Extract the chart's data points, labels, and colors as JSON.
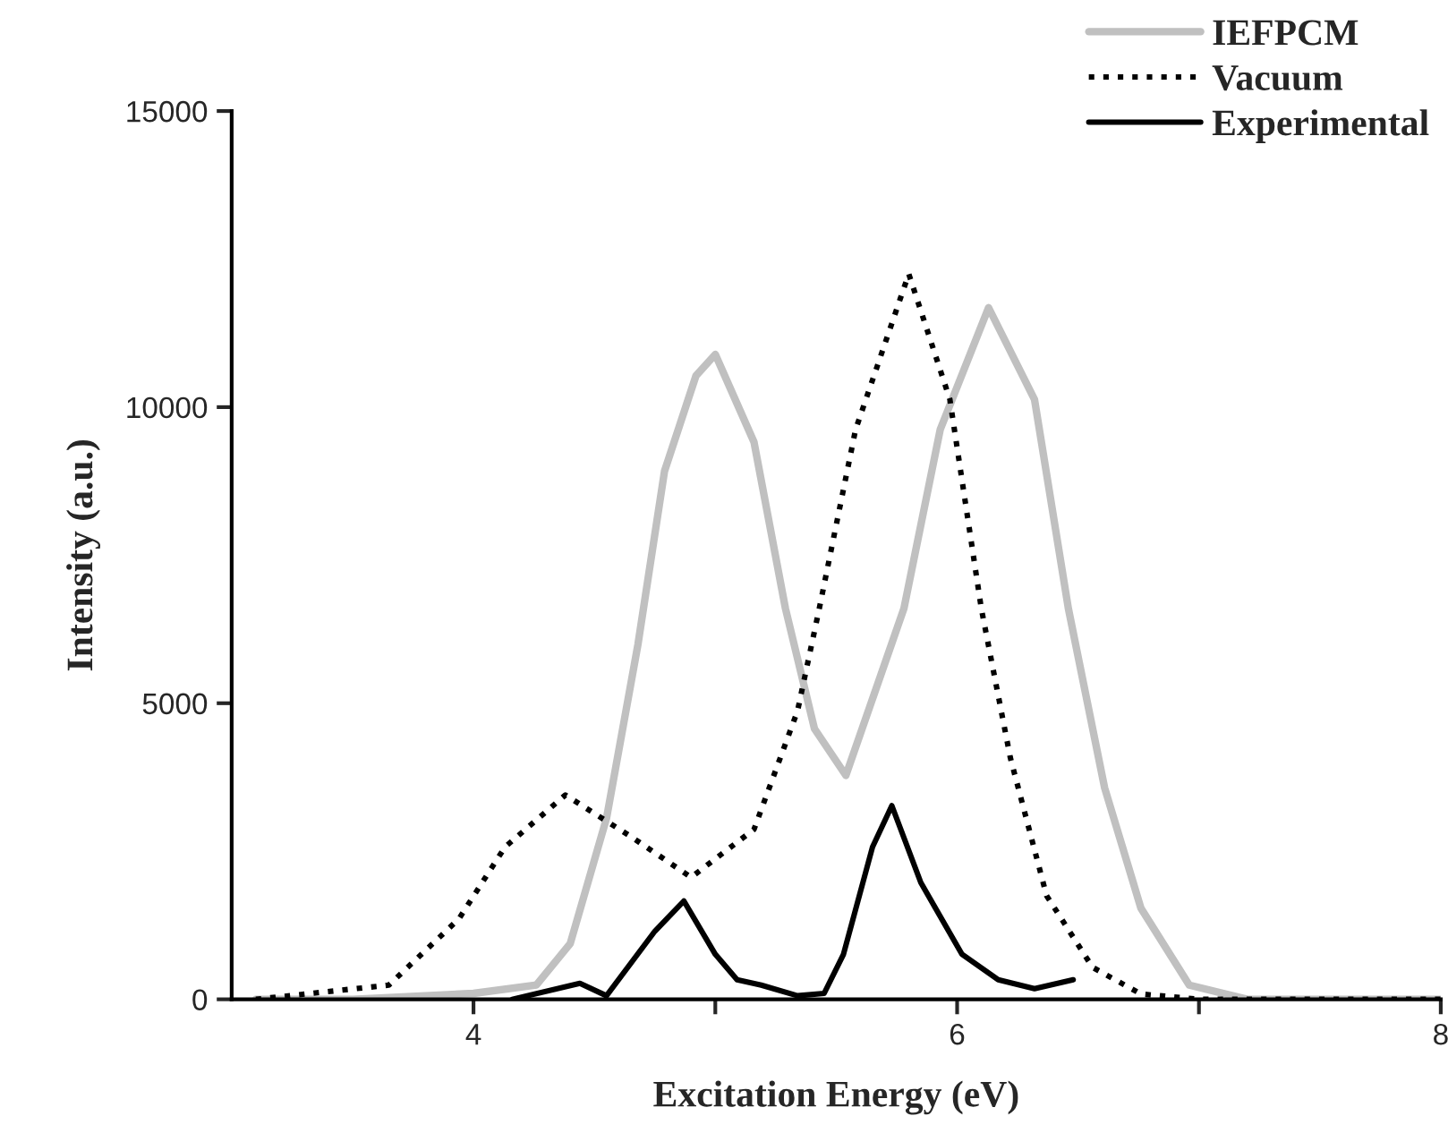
{
  "chart_data": {
    "type": "line",
    "xlabel": "Excitation Energy (eV)",
    "ylabel": "Intensity (a.u.)",
    "xlim": [
      3,
      8
    ],
    "xticks": [
      4,
      {
        "value": 5,
        "label": null
      },
      6,
      {
        "value": 7,
        "label": null
      },
      8
    ],
    "ylim": [
      0,
      15000
    ],
    "yticks": [
      0,
      5000,
      10000,
      15000
    ],
    "grid": false,
    "legend": "top right",
    "marker": "none",
    "series": [
      {
        "name": "IEFPCM",
        "color": "#c0c0c0",
        "line_style": "solid",
        "x": [
          3.1,
          3.5,
          4.0,
          4.26,
          4.4,
          4.55,
          4.68,
          4.79,
          4.92,
          5.0,
          5.16,
          5.29,
          5.41,
          5.54,
          5.78,
          5.93,
          6.13,
          6.32,
          6.46,
          6.61,
          6.76,
          6.96,
          7.2,
          8.0
        ],
        "values": [
          0,
          0,
          100,
          240,
          940,
          3055,
          5990,
          8920,
          10530,
          10890,
          9410,
          6600,
          4570,
          3780,
          6600,
          9620,
          11680,
          10130,
          6600,
          3570,
          1540,
          240,
          0,
          0
        ]
      },
      {
        "name": "Vacuum",
        "color": "#000000",
        "line_style": "dotted",
        "x": [
          3.1,
          3.65,
          3.94,
          4.13,
          4.38,
          4.65,
          4.9,
          5.16,
          5.34,
          5.43,
          5.58,
          5.8,
          5.97,
          6.1,
          6.22,
          6.37,
          6.56,
          6.76,
          7.0,
          8.0
        ],
        "values": [
          0,
          240,
          1360,
          2570,
          3450,
          2750,
          2060,
          2870,
          4870,
          6600,
          9620,
          12250,
          10130,
          6600,
          4080,
          1750,
          540,
          90,
          0,
          0
        ]
      },
      {
        "name": "Experimental",
        "color": "#000000",
        "line_style": "solid",
        "x": [
          4.16,
          4.44,
          4.55,
          4.75,
          4.87,
          5.0,
          5.09,
          5.19,
          5.34,
          5.45,
          5.53,
          5.65,
          5.73,
          5.85,
          6.02,
          6.17,
          6.32,
          6.48
        ],
        "values": [
          0,
          270,
          60,
          1150,
          1660,
          760,
          330,
          240,
          60,
          100,
          760,
          2570,
          3270,
          1970,
          760,
          330,
          180,
          330
        ]
      }
    ]
  }
}
